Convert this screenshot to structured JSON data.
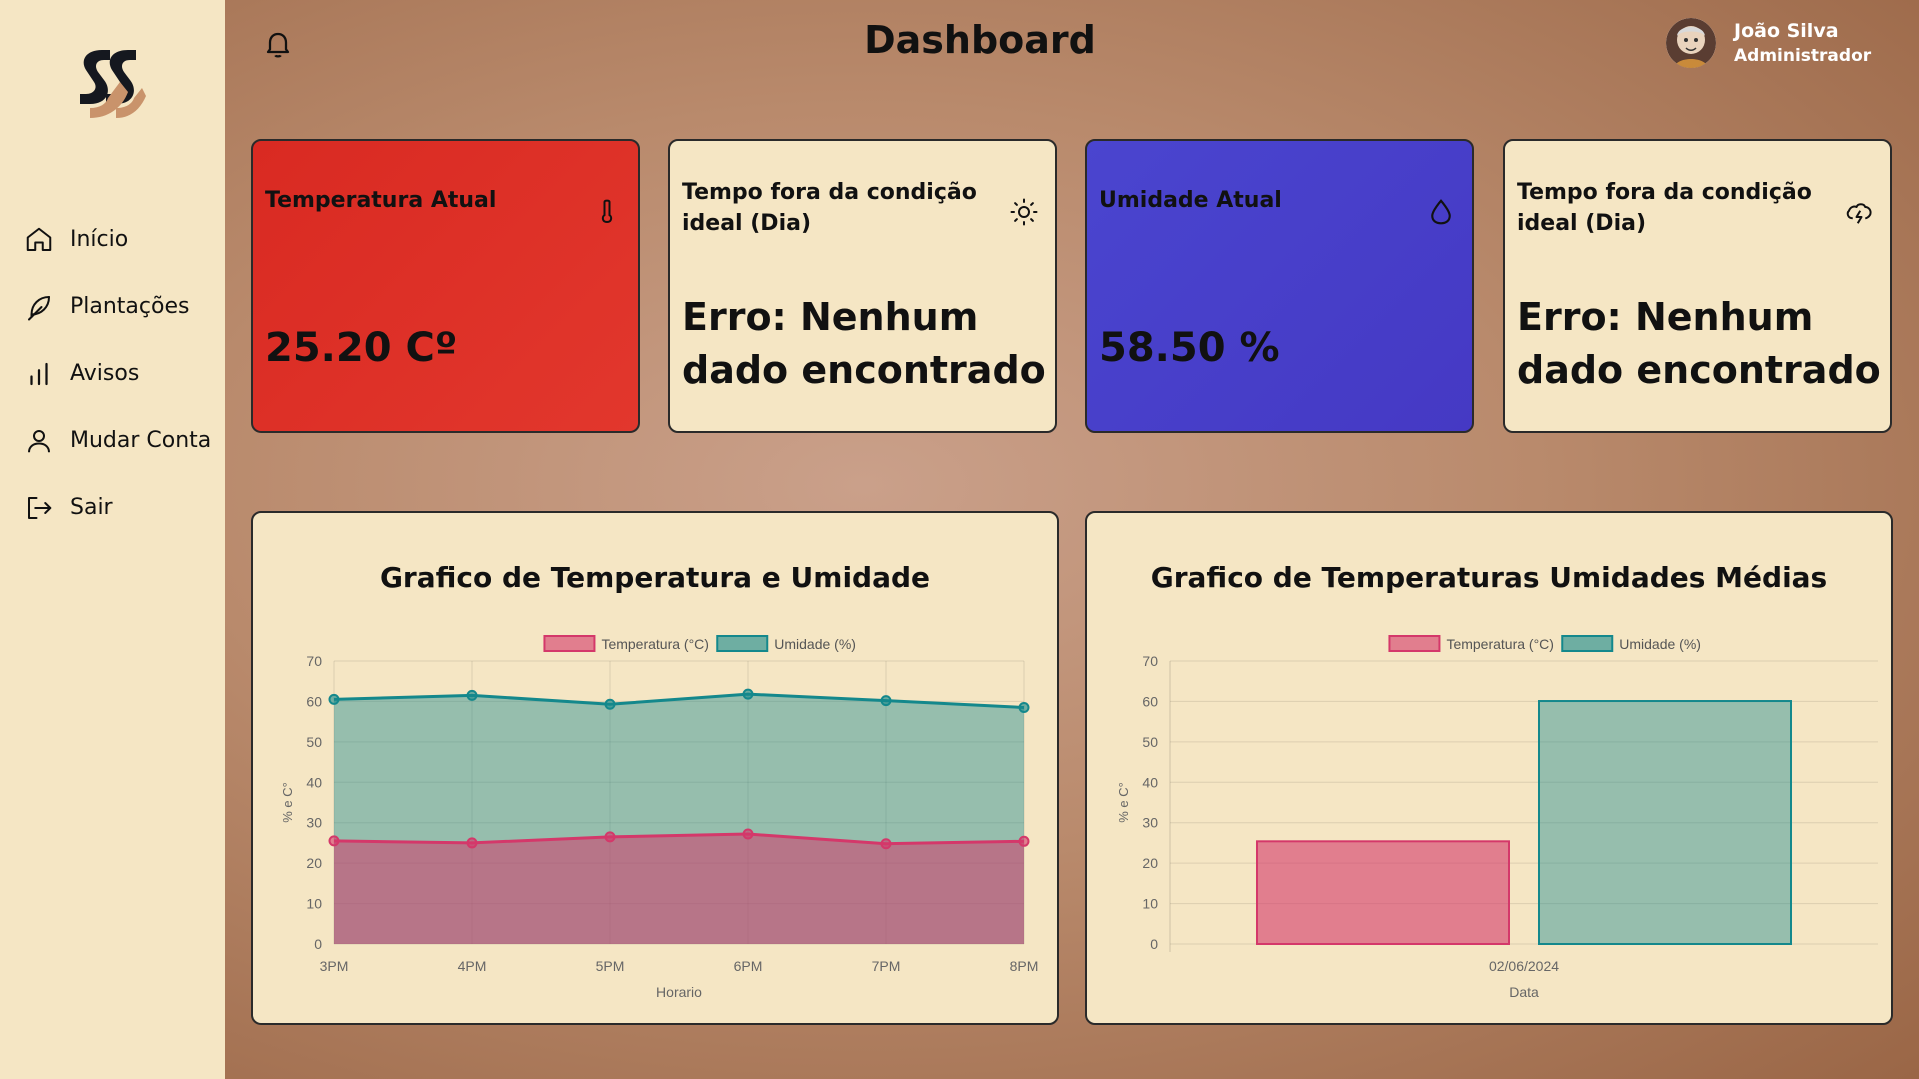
{
  "header": {
    "title": "Dashboard"
  },
  "user": {
    "name": "João Silva",
    "role": "Administrador"
  },
  "sidebar": {
    "items": [
      {
        "label": "Início",
        "icon": "home-icon"
      },
      {
        "label": "Plantações",
        "icon": "feather-icon"
      },
      {
        "label": "Avisos",
        "icon": "bar-chart-icon"
      },
      {
        "label": "Mudar Conta",
        "icon": "user-icon"
      },
      {
        "label": "Sair",
        "icon": "logout-icon"
      }
    ]
  },
  "cards": {
    "temperature": {
      "title": "Temperatura Atual",
      "value": "25.20 Cº",
      "color": "#e0342b",
      "icon": "thermometer-icon"
    },
    "outside_day": {
      "title": "Tempo fora da condição ideal (Dia)",
      "value": "Erro: Nenhum dado encontrado",
      "icon": "sun-icon"
    },
    "humidity": {
      "title": "Umidade Atual",
      "value": "58.50 %",
      "color": "#4840c8",
      "icon": "droplet-icon"
    },
    "outside_day_2": {
      "title": "Tempo fora da condição ideal (Dia)",
      "value": "Erro: Nenhum dado encontrado",
      "icon": "cloud-lightning-icon"
    }
  },
  "charts": {
    "line_title": "Grafico de Temperatura e Umidade",
    "bar_title": "Grafico de Temperaturas Umidades Médias"
  },
  "chart_data": [
    {
      "type": "area",
      "title": "Grafico de Temperatura e Umidade",
      "x": [
        "3PM",
        "4PM",
        "5PM",
        "6PM",
        "7PM",
        "8PM"
      ],
      "series": [
        {
          "name": "Temperatura (°C)",
          "values": [
            25.5,
            25,
            26.5,
            27.2,
            24.8,
            25.4
          ],
          "color": "#d4386a"
        },
        {
          "name": "Umidade (%)",
          "values": [
            60.5,
            61.5,
            59.3,
            61.8,
            60.2,
            58.5
          ],
          "color": "#14888c"
        }
      ],
      "xlabel": "Horario",
      "ylabel": "% e C°",
      "ylim": [
        0,
        70
      ],
      "yticks": [
        0,
        10,
        20,
        30,
        40,
        50,
        60,
        70
      ],
      "legend": "top-center",
      "grid": true
    },
    {
      "type": "bar",
      "title": "Grafico de Temperaturas Umidades Médias",
      "categories": [
        "02/06/2024"
      ],
      "series": [
        {
          "name": "Temperatura (°C)",
          "values": [
            25.4
          ],
          "color": "#d4386a"
        },
        {
          "name": "Umidade (%)",
          "values": [
            60.1
          ],
          "color": "#14888c"
        }
      ],
      "xlabel": "Data",
      "ylabel": "% e C°",
      "ylim": [
        0,
        70
      ],
      "yticks": [
        0,
        10,
        20,
        30,
        40,
        50,
        60,
        70
      ],
      "legend": "top-center",
      "grid": true
    }
  ]
}
